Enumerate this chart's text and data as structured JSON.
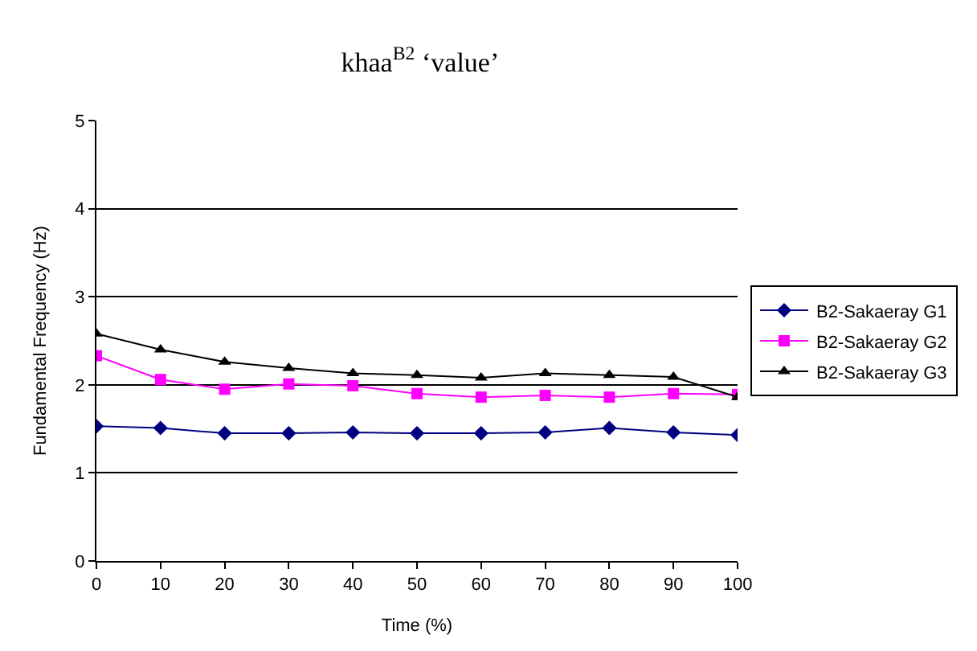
{
  "chart_data": {
    "type": "line",
    "title": "khaa$^{B2}$ ‘value’",
    "xlabel": "Time (%)",
    "ylabel": "Fundamental Frequency (Hz)",
    "x": [
      0,
      10,
      20,
      30,
      40,
      50,
      60,
      70,
      80,
      90,
      100
    ],
    "series": [
      {
        "name": "B2-Sakaeray G1",
        "color": "#000080",
        "marker": "diamond",
        "values": [
          1.53,
          1.51,
          1.45,
          1.45,
          1.46,
          1.45,
          1.45,
          1.46,
          1.51,
          1.46,
          1.43
        ]
      },
      {
        "name": "B2-Sakaeray G2",
        "color": "#ff00ff",
        "marker": "square",
        "values": [
          2.33,
          2.06,
          1.95,
          2.01,
          1.99,
          1.9,
          1.86,
          1.88,
          1.86,
          1.9,
          1.89
        ]
      },
      {
        "name": "B2-Sakaeray G3",
        "color": "#000000",
        "marker": "triangle",
        "values": [
          2.58,
          2.4,
          2.26,
          2.19,
          2.13,
          2.11,
          2.08,
          2.13,
          2.11,
          2.09,
          1.86
        ]
      }
    ],
    "xlim": [
      0,
      100
    ],
    "xticks": [
      0,
      10,
      20,
      30,
      40,
      50,
      60,
      70,
      80,
      90,
      100
    ],
    "ylim": [
      0,
      5
    ],
    "yticks": [
      0,
      1,
      2,
      3,
      4,
      5
    ],
    "grid": "y",
    "legend": "right",
    "line_style": "solid"
  }
}
